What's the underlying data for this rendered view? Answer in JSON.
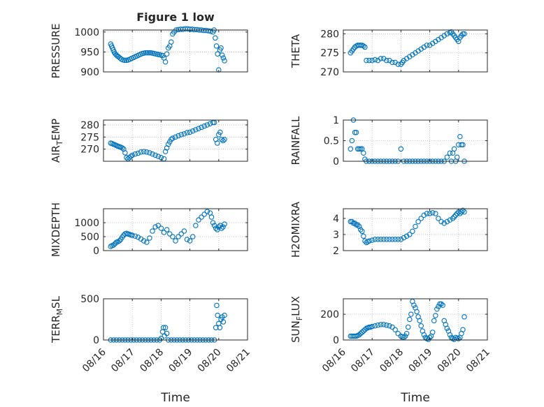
{
  "figure": {
    "title": "Figure 1 low"
  },
  "colors": {
    "marker": "#0072BD",
    "axis": "#262626",
    "grid": "#b0b0b0"
  },
  "xaxis": {
    "label": "Time",
    "ticks": [
      "08/16",
      "08/17",
      "08/18",
      "08/19",
      "08/20",
      "08/21"
    ],
    "range": [
      "08/16",
      "08/21"
    ]
  },
  "chart_data": [
    {
      "type": "scatter",
      "ylabel_main": "PRESSURE",
      "ylabel_sub": "",
      "ylabel_tail": "",
      "ylim": [
        900,
        1005
      ],
      "yticks": [
        "900",
        "950",
        "1000"
      ],
      "ytick_values": [
        900,
        950,
        1000
      ],
      "grid": true,
      "series": [
        {
          "x": [
            0.25,
            0.28,
            0.31,
            0.34,
            0.37,
            0.4,
            0.44,
            0.48,
            0.52,
            0.57,
            0.62,
            0.68,
            0.74,
            0.8,
            0.86,
            0.92,
            0.98,
            1.04,
            1.1,
            1.16,
            1.22,
            1.28,
            1.34,
            1.4,
            1.46,
            1.52,
            1.58,
            1.64,
            1.7,
            1.76,
            1.82,
            1.88,
            1.94,
            2.0,
            2.06,
            2.1,
            2.15,
            2.2,
            2.25,
            2.3,
            2.35,
            2.4,
            2.45,
            2.52,
            2.6,
            2.68,
            2.76,
            2.84,
            2.92,
            3.0,
            3.08,
            3.16,
            3.24,
            3.32,
            3.4,
            3.48,
            3.56,
            3.64,
            3.72,
            3.8,
            3.84,
            3.88,
            3.92,
            3.96,
            4.0,
            4.04,
            4.08,
            4.12,
            4.16,
            4.2
          ],
          "y": [
            970,
            965,
            960,
            955,
            950,
            946,
            943,
            940,
            938,
            935,
            932,
            930,
            929,
            929,
            930,
            932,
            934,
            936,
            938,
            940,
            942,
            944,
            946,
            947,
            948,
            948,
            948,
            948,
            947,
            946,
            945,
            944,
            943,
            942,
            941,
            935,
            925,
            945,
            960,
            965,
            975,
            995,
            1000,
            1005,
            1006,
            1007,
            1007,
            1008,
            1008,
            1007,
            1007,
            1006,
            1006,
            1005,
            1005,
            1004,
            1004,
            1003,
            1002,
            1000,
            1005,
            985,
            965,
            945,
            905,
            955,
            960,
            942,
            935,
            928
          ]
        }
      ]
    },
    {
      "type": "scatter",
      "ylabel_main": "THETA",
      "ylabel_sub": "",
      "ylabel_tail": "",
      "ylim": [
        270,
        281
      ],
      "yticks": [
        "270",
        "275",
        "280"
      ],
      "ytick_values": [
        270,
        275,
        280
      ],
      "grid": true,
      "series": [
        {
          "x": [
            0.25,
            0.3,
            0.35,
            0.4,
            0.45,
            0.5,
            0.55,
            0.6,
            0.65,
            0.7,
            0.75,
            0.8,
            0.9,
            1.0,
            1.1,
            1.2,
            1.3,
            1.4,
            1.5,
            1.6,
            1.7,
            1.8,
            1.9,
            2.0,
            2.05,
            2.1,
            2.2,
            2.3,
            2.4,
            2.5,
            2.6,
            2.7,
            2.8,
            2.9,
            3.0,
            3.1,
            3.2,
            3.3,
            3.4,
            3.5,
            3.6,
            3.7,
            3.75,
            3.8,
            3.85,
            3.9,
            3.95,
            4.0,
            4.05,
            4.1,
            4.15,
            4.2
          ],
          "y": [
            275,
            275.5,
            276,
            276.5,
            276.8,
            277,
            277,
            277,
            277,
            276.8,
            276.5,
            273,
            273,
            273,
            273.2,
            273,
            273.5,
            273.5,
            273,
            273,
            272.5,
            272.5,
            272,
            272,
            272.5,
            273,
            273.5,
            274,
            274.5,
            275,
            275.5,
            276,
            276.5,
            277,
            277,
            277.5,
            278,
            278.5,
            279,
            279.5,
            280,
            280.3,
            280.5,
            280,
            279.5,
            279,
            278.5,
            278,
            279,
            279.5,
            280,
            280
          ]
        }
      ]
    },
    {
      "type": "scatter",
      "ylabel_main": "AIR",
      "ylabel_sub": "T",
      "ylabel_tail": "EMP",
      "ylim": [
        265,
        282
      ],
      "yticks": [
        "270",
        "275",
        "280"
      ],
      "ytick_values": [
        270,
        275,
        280
      ],
      "grid": true,
      "series": [
        {
          "x": [
            0.25,
            0.3,
            0.35,
            0.4,
            0.45,
            0.5,
            0.55,
            0.6,
            0.65,
            0.7,
            0.75,
            0.8,
            0.85,
            0.9,
            0.95,
            1.0,
            1.1,
            1.2,
            1.3,
            1.4,
            1.5,
            1.6,
            1.7,
            1.8,
            1.9,
            2.0,
            2.1,
            2.15,
            2.2,
            2.25,
            2.3,
            2.35,
            2.4,
            2.5,
            2.6,
            2.7,
            2.8,
            2.9,
            3.0,
            3.1,
            3.2,
            3.3,
            3.4,
            3.5,
            3.6,
            3.7,
            3.8,
            3.85,
            3.9,
            3.95,
            4.0,
            4.05,
            4.1,
            4.15,
            4.2
          ],
          "y": [
            272.5,
            272.3,
            272,
            271.8,
            271.5,
            271.2,
            271,
            270.8,
            270.5,
            270,
            268.5,
            266.5,
            266,
            266.5,
            267,
            267.5,
            268,
            268.3,
            268.8,
            269,
            268.8,
            268.5,
            268,
            267.5,
            267,
            266.5,
            266,
            269,
            270.5,
            272,
            273,
            274,
            274.5,
            275,
            275.5,
            276,
            276.3,
            276.8,
            277,
            277.5,
            278,
            278.5,
            279,
            279.5,
            280,
            280.5,
            281,
            281,
            274,
            272.5,
            276,
            277,
            274,
            273.5,
            274
          ]
        }
      ]
    },
    {
      "type": "scatter",
      "ylabel_main": "RAINFALL",
      "ylabel_sub": "",
      "ylabel_tail": "",
      "ylim": [
        0,
        1
      ],
      "yticks": [
        "0",
        "0.5",
        "1"
      ],
      "ytick_values": [
        0,
        0.5,
        1
      ],
      "grid": true,
      "series": [
        {
          "x": [
            0.25,
            0.3,
            0.35,
            0.4,
            0.45,
            0.5,
            0.55,
            0.6,
            0.65,
            0.7,
            0.75,
            0.8,
            0.9,
            1.0,
            1.1,
            1.2,
            1.3,
            1.4,
            1.5,
            1.6,
            1.7,
            1.8,
            1.9,
            2.0,
            2.1,
            2.2,
            2.3,
            2.4,
            2.5,
            2.6,
            2.7,
            2.8,
            2.9,
            3.0,
            3.1,
            3.2,
            3.3,
            3.4,
            3.5,
            3.6,
            3.7,
            3.75,
            3.8,
            3.85,
            3.9,
            3.95,
            4.0,
            4.05,
            4.1,
            4.15,
            4.2
          ],
          "y": [
            0.3,
            0.5,
            1.0,
            0.7,
            0.7,
            0.3,
            0.3,
            0.3,
            0.3,
            0.2,
            0.05,
            0,
            0,
            0,
            0,
            0,
            0,
            0,
            0,
            0,
            0,
            0,
            0,
            0.3,
            0,
            0,
            0,
            0,
            0,
            0,
            0,
            0,
            0,
            0,
            0,
            0,
            0,
            0,
            0,
            0.1,
            0.2,
            0,
            0.2,
            0.3,
            0,
            0.1,
            0.4,
            0.6,
            0.4,
            0.4,
            0
          ]
        }
      ]
    },
    {
      "type": "scatter",
      "ylabel_main": "MIXDEPTH",
      "ylabel_sub": "",
      "ylabel_tail": "",
      "ylim": [
        0,
        1500
      ],
      "yticks": [
        "0",
        "500",
        "1000"
      ],
      "ytick_values": [
        0,
        500,
        1000
      ],
      "grid": true,
      "series": [
        {
          "x": [
            0.25,
            0.3,
            0.35,
            0.4,
            0.45,
            0.5,
            0.55,
            0.6,
            0.65,
            0.7,
            0.75,
            0.8,
            0.85,
            0.9,
            0.95,
            1.0,
            1.1,
            1.2,
            1.3,
            1.4,
            1.5,
            1.6,
            1.7,
            1.8,
            1.9,
            2.0,
            2.1,
            2.2,
            2.3,
            2.4,
            2.5,
            2.6,
            2.7,
            2.8,
            2.9,
            3.0,
            3.1,
            3.2,
            3.3,
            3.4,
            3.5,
            3.6,
            3.7,
            3.75,
            3.8,
            3.85,
            3.9,
            3.95,
            4.0,
            4.05,
            4.1,
            4.15,
            4.2
          ],
          "y": [
            150,
            180,
            200,
            250,
            300,
            320,
            350,
            400,
            480,
            550,
            600,
            620,
            600,
            580,
            560,
            550,
            520,
            480,
            420,
            350,
            300,
            450,
            700,
            850,
            900,
            800,
            650,
            750,
            600,
            500,
            350,
            500,
            600,
            700,
            400,
            350,
            500,
            900,
            1100,
            1200,
            1300,
            1400,
            1350,
            1200,
            1000,
            900,
            800,
            750,
            850,
            900,
            800,
            850,
            950
          ]
        }
      ]
    },
    {
      "type": "scatter",
      "ylabel_main": "H2OMIXRA",
      "ylabel_sub": "",
      "ylabel_tail": "",
      "ylim": [
        2,
        4.6
      ],
      "yticks": [
        "2",
        "3",
        "4"
      ],
      "ytick_values": [
        2,
        3,
        4
      ],
      "grid": true,
      "series": [
        {
          "x": [
            0.25,
            0.3,
            0.35,
            0.4,
            0.45,
            0.5,
            0.55,
            0.6,
            0.65,
            0.7,
            0.75,
            0.8,
            0.85,
            0.9,
            1.0,
            1.1,
            1.2,
            1.3,
            1.4,
            1.5,
            1.6,
            1.7,
            1.8,
            1.9,
            2.0,
            2.1,
            2.2,
            2.3,
            2.4,
            2.5,
            2.6,
            2.7,
            2.8,
            2.9,
            3.0,
            3.1,
            3.2,
            3.3,
            3.4,
            3.5,
            3.6,
            3.7,
            3.8,
            3.85,
            3.9,
            3.95,
            4.0,
            4.05,
            4.1,
            4.15,
            4.2
          ],
          "y": [
            3.8,
            3.8,
            3.7,
            3.7,
            3.6,
            3.6,
            3.5,
            3.3,
            3.2,
            2.9,
            2.6,
            2.5,
            2.55,
            2.6,
            2.65,
            2.7,
            2.7,
            2.7,
            2.7,
            2.7,
            2.7,
            2.7,
            2.7,
            2.7,
            2.7,
            2.8,
            2.9,
            3.0,
            3.2,
            3.5,
            3.8,
            4.0,
            4.2,
            4.3,
            4.3,
            4.35,
            4.3,
            4.0,
            3.8,
            3.7,
            3.8,
            3.9,
            4.0,
            4.1,
            4.2,
            4.3,
            4.4,
            4.3,
            4.4,
            4.5,
            4.4
          ]
        }
      ]
    },
    {
      "type": "scatter",
      "ylabel_main": "TERR",
      "ylabel_sub": "M",
      "ylabel_tail": "SL",
      "ylim": [
        0,
        500
      ],
      "yticks": [
        "0",
        "500"
      ],
      "ytick_values": [
        0,
        500
      ],
      "grid": true,
      "series": [
        {
          "x": [
            0.25,
            0.35,
            0.45,
            0.55,
            0.65,
            0.75,
            0.85,
            0.95,
            1.05,
            1.15,
            1.25,
            1.35,
            1.45,
            1.55,
            1.65,
            1.75,
            1.85,
            1.95,
            2.0,
            2.05,
            2.08,
            2.12,
            2.15,
            2.2,
            2.25,
            2.35,
            2.45,
            2.55,
            2.65,
            2.75,
            2.85,
            2.95,
            3.05,
            3.15,
            3.25,
            3.35,
            3.45,
            3.55,
            3.65,
            3.75,
            3.85,
            3.9,
            3.93,
            3.96,
            4.0,
            4.04,
            4.08,
            4.12,
            4.16,
            4.2
          ],
          "y": [
            0,
            0,
            0,
            0,
            0,
            0,
            0,
            0,
            0,
            0,
            0,
            0,
            0,
            0,
            0,
            0,
            0,
            0,
            20,
            100,
            150,
            50,
            150,
            80,
            0,
            0,
            0,
            0,
            0,
            0,
            0,
            0,
            0,
            0,
            0,
            0,
            0,
            0,
            0,
            0,
            0,
            150,
            420,
            300,
            200,
            150,
            250,
            280,
            220,
            300
          ]
        }
      ]
    },
    {
      "type": "scatter",
      "ylabel_main": "SUN",
      "ylabel_sub": "F",
      "ylabel_tail": "LUX",
      "ylim": [
        0,
        320
      ],
      "yticks": [
        "0",
        "200"
      ],
      "ytick_values": [
        0,
        200
      ],
      "grid": true,
      "series": [
        {
          "x": [
            0.25,
            0.3,
            0.35,
            0.4,
            0.45,
            0.5,
            0.55,
            0.6,
            0.65,
            0.7,
            0.75,
            0.8,
            0.85,
            0.9,
            0.95,
            1.0,
            1.1,
            1.2,
            1.3,
            1.4,
            1.5,
            1.6,
            1.7,
            1.8,
            1.9,
            2.0,
            2.05,
            2.1,
            2.15,
            2.2,
            2.25,
            2.3,
            2.35,
            2.4,
            2.45,
            2.5,
            2.55,
            2.6,
            2.65,
            2.7,
            2.75,
            2.8,
            2.85,
            2.9,
            2.95,
            3.0,
            3.05,
            3.1,
            3.15,
            3.2,
            3.25,
            3.3,
            3.35,
            3.4,
            3.45,
            3.5,
            3.55,
            3.6,
            3.65,
            3.7,
            3.75,
            3.8,
            3.85,
            3.9,
            3.95,
            4.0,
            4.05,
            4.1,
            4.15,
            4.2
          ],
          "y": [
            30,
            30,
            30,
            30,
            30,
            35,
            40,
            50,
            60,
            70,
            80,
            90,
            95,
            100,
            100,
            105,
            110,
            115,
            120,
            120,
            115,
            110,
            100,
            80,
            50,
            30,
            25,
            20,
            30,
            50,
            100,
            160,
            200,
            300,
            270,
            250,
            220,
            180,
            150,
            110,
            70,
            40,
            20,
            10,
            5,
            20,
            30,
            60,
            150,
            190,
            240,
            260,
            280,
            280,
            270,
            150,
            120,
            90,
            70,
            40,
            20,
            10,
            5,
            20,
            15,
            10,
            20,
            50,
            80,
            180
          ]
        }
      ]
    }
  ]
}
